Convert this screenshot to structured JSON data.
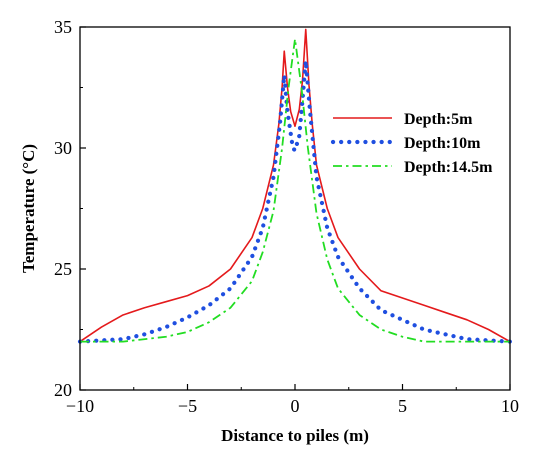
{
  "chart_data": {
    "type": "line",
    "title": "",
    "xlabel": "Distance to piles (m)",
    "ylabel": "Temperature (°C)",
    "xlim": [
      -10,
      10
    ],
    "ylim": [
      20,
      35
    ],
    "xticks": [
      -10,
      -5,
      0,
      5,
      10
    ],
    "xtick_labels": [
      "−10",
      "−5",
      "0",
      "5",
      "10"
    ],
    "yticks": [
      20,
      25,
      30,
      35
    ],
    "ytick_labels": [
      "20",
      "25",
      "30",
      "35"
    ],
    "grid": false,
    "legend_position": "right",
    "series": [
      {
        "name": "Depth:5m",
        "color": "#e41a1c",
        "style": "solid",
        "points": [
          [
            -10,
            22.0
          ],
          [
            -9,
            22.6
          ],
          [
            -8,
            23.1
          ],
          [
            -7,
            23.4
          ],
          [
            -6,
            23.65
          ],
          [
            -5,
            23.9
          ],
          [
            -4,
            24.3
          ],
          [
            -3,
            25.0
          ],
          [
            -2,
            26.3
          ],
          [
            -1.5,
            27.5
          ],
          [
            -1,
            29.3
          ],
          [
            -0.75,
            31.0
          ],
          [
            -0.6,
            32.5
          ],
          [
            -0.5,
            34.0
          ],
          [
            -0.35,
            32.5
          ],
          [
            -0.2,
            31.5
          ],
          [
            0,
            30.9
          ],
          [
            0.2,
            31.6
          ],
          [
            0.35,
            32.8
          ],
          [
            0.5,
            34.9
          ],
          [
            0.65,
            32.6
          ],
          [
            0.8,
            31.0
          ],
          [
            1,
            29.3
          ],
          [
            1.5,
            27.5
          ],
          [
            2,
            26.3
          ],
          [
            3,
            25.0
          ],
          [
            4,
            24.1
          ],
          [
            5,
            23.8
          ],
          [
            6,
            23.5
          ],
          [
            7,
            23.2
          ],
          [
            8,
            22.9
          ],
          [
            9,
            22.5
          ],
          [
            10,
            22.0
          ]
        ]
      },
      {
        "name": "Depth:10m",
        "color": "#1f4fe0",
        "style": "dotted",
        "points": [
          [
            -10,
            22.0
          ],
          [
            -8,
            22.1
          ],
          [
            -7,
            22.3
          ],
          [
            -6,
            22.6
          ],
          [
            -5,
            23.0
          ],
          [
            -4,
            23.5
          ],
          [
            -3,
            24.2
          ],
          [
            -2,
            25.5
          ],
          [
            -1.5,
            26.7
          ],
          [
            -1,
            28.8
          ],
          [
            -0.7,
            31.0
          ],
          [
            -0.5,
            33.0
          ],
          [
            -0.35,
            31.5
          ],
          [
            -0.1,
            30.0
          ],
          [
            0,
            29.9
          ],
          [
            0.2,
            30.5
          ],
          [
            0.35,
            32.0
          ],
          [
            0.5,
            33.6
          ],
          [
            0.7,
            31.5
          ],
          [
            1,
            28.8
          ],
          [
            1.5,
            26.7
          ],
          [
            2,
            25.5
          ],
          [
            3,
            24.2
          ],
          [
            4,
            23.3
          ],
          [
            5,
            22.9
          ],
          [
            6,
            22.5
          ],
          [
            7,
            22.3
          ],
          [
            8,
            22.1
          ],
          [
            10,
            22.0
          ]
        ]
      },
      {
        "name": "Depth:14.5m",
        "color": "#22dd22",
        "style": "dashdot",
        "points": [
          [
            -10,
            22.0
          ],
          [
            -8,
            22.0
          ],
          [
            -6,
            22.2
          ],
          [
            -5,
            22.4
          ],
          [
            -4,
            22.8
          ],
          [
            -3,
            23.4
          ],
          [
            -2,
            24.5
          ],
          [
            -1.5,
            25.7
          ],
          [
            -1,
            27.4
          ],
          [
            -0.6,
            30.0
          ],
          [
            -0.3,
            32.5
          ],
          [
            0,
            34.5
          ],
          [
            0.3,
            32.5
          ],
          [
            0.6,
            30.0
          ],
          [
            1,
            27.3
          ],
          [
            1.5,
            25.4
          ],
          [
            2,
            24.2
          ],
          [
            3,
            23.1
          ],
          [
            4,
            22.5
          ],
          [
            5,
            22.2
          ],
          [
            6,
            22.0
          ],
          [
            10,
            22.0
          ]
        ]
      }
    ]
  }
}
